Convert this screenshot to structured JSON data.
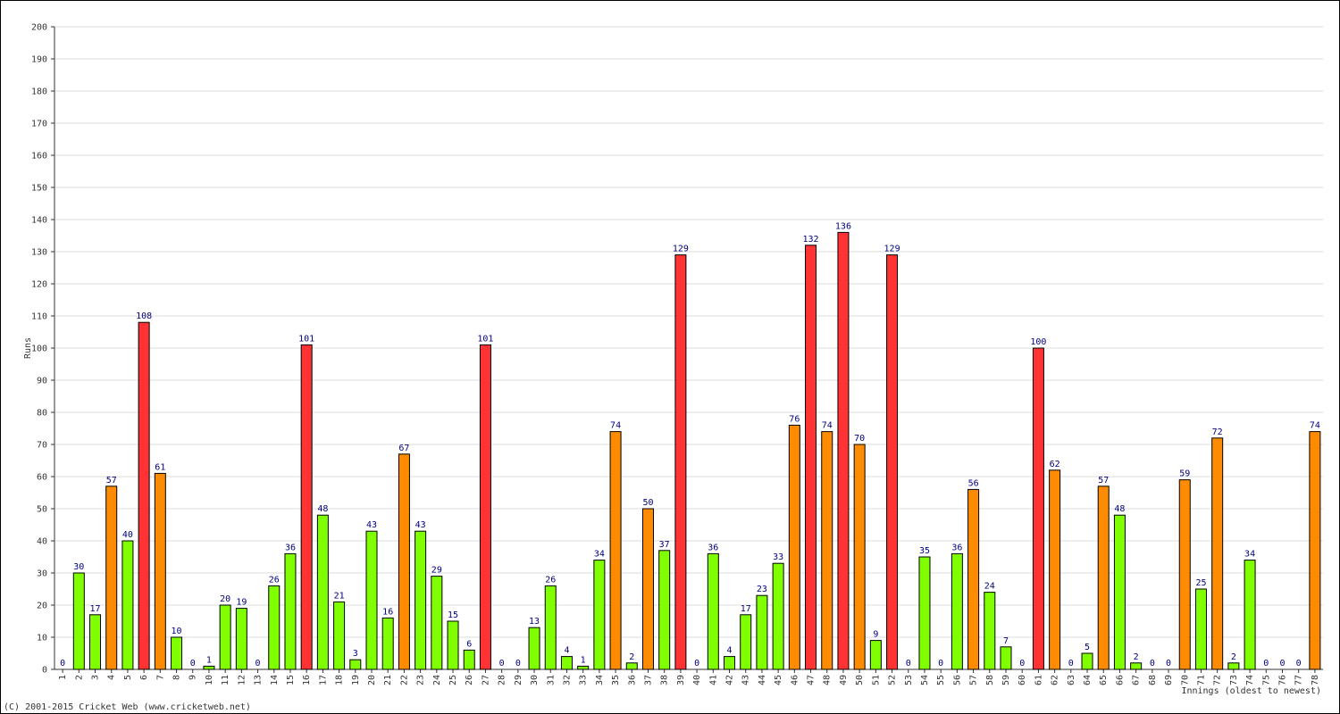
{
  "chart_data": {
    "type": "bar",
    "x_label": "Innings (oldest to newest)",
    "y_label": "Runs",
    "footer": "(C) 2001-2015 Cricket Web (www.cricketweb.net)",
    "categories": [
      "1",
      "2",
      "3",
      "4",
      "5",
      "6",
      "7",
      "8",
      "9",
      "10",
      "11",
      "12",
      "13",
      "14",
      "15",
      "16",
      "17",
      "18",
      "19",
      "20",
      "21",
      "22",
      "23",
      "24",
      "25",
      "26",
      "27",
      "28",
      "29",
      "30",
      "31",
      "32",
      "33",
      "34",
      "35",
      "36",
      "37",
      "38",
      "39",
      "40",
      "41",
      "42",
      "43",
      "44",
      "45",
      "46",
      "47",
      "48",
      "49",
      "50",
      "51",
      "52",
      "53",
      "54",
      "55",
      "56",
      "57",
      "58",
      "59",
      "60",
      "61",
      "62",
      "63",
      "64",
      "65",
      "66",
      "67",
      "68",
      "69",
      "70",
      "71",
      "72",
      "73",
      "74",
      "75",
      "76",
      "77",
      "78"
    ],
    "values": [
      0,
      30,
      17,
      57,
      40,
      108,
      61,
      10,
      0,
      1,
      20,
      19,
      0,
      26,
      36,
      101,
      48,
      21,
      3,
      43,
      16,
      67,
      43,
      29,
      15,
      6,
      101,
      0,
      0,
      13,
      26,
      4,
      1,
      34,
      74,
      2,
      50,
      37,
      129,
      0,
      36,
      4,
      17,
      23,
      33,
      76,
      132,
      74,
      136,
      70,
      9,
      129,
      0,
      35,
      0,
      36,
      56,
      24,
      7,
      0,
      100,
      62,
      0,
      5,
      57,
      48,
      2,
      0,
      0,
      59,
      25,
      72,
      2,
      34,
      0,
      0,
      0,
      74
    ],
    "colors": [
      "#80ff00",
      "#80ff00",
      "#80ff00",
      "#ff8c00",
      "#80ff00",
      "#ff3333",
      "#ff8c00",
      "#80ff00",
      "#80ff00",
      "#80ff00",
      "#80ff00",
      "#80ff00",
      "#80ff00",
      "#80ff00",
      "#80ff00",
      "#ff3333",
      "#80ff00",
      "#80ff00",
      "#80ff00",
      "#80ff00",
      "#80ff00",
      "#ff8c00",
      "#80ff00",
      "#80ff00",
      "#80ff00",
      "#80ff00",
      "#ff3333",
      "#80ff00",
      "#80ff00",
      "#80ff00",
      "#80ff00",
      "#80ff00",
      "#80ff00",
      "#80ff00",
      "#ff8c00",
      "#80ff00",
      "#ff8c00",
      "#80ff00",
      "#ff3333",
      "#80ff00",
      "#80ff00",
      "#80ff00",
      "#80ff00",
      "#80ff00",
      "#80ff00",
      "#ff8c00",
      "#ff3333",
      "#ff8c00",
      "#ff3333",
      "#ff8c00",
      "#80ff00",
      "#ff3333",
      "#80ff00",
      "#80ff00",
      "#80ff00",
      "#80ff00",
      "#ff8c00",
      "#80ff00",
      "#80ff00",
      "#80ff00",
      "#ff3333",
      "#ff8c00",
      "#80ff00",
      "#80ff00",
      "#ff8c00",
      "#80ff00",
      "#80ff00",
      "#80ff00",
      "#80ff00",
      "#ff8c00",
      "#80ff00",
      "#ff8c00",
      "#80ff00",
      "#80ff00",
      "#80ff00",
      "#80ff00",
      "#80ff00",
      "#ff8c00"
    ],
    "ylim": [
      0,
      200
    ],
    "yticks": [
      0,
      10,
      20,
      30,
      40,
      50,
      60,
      70,
      80,
      90,
      100,
      110,
      120,
      130,
      140,
      150,
      160,
      170,
      180,
      190,
      200
    ],
    "grid": true
  }
}
